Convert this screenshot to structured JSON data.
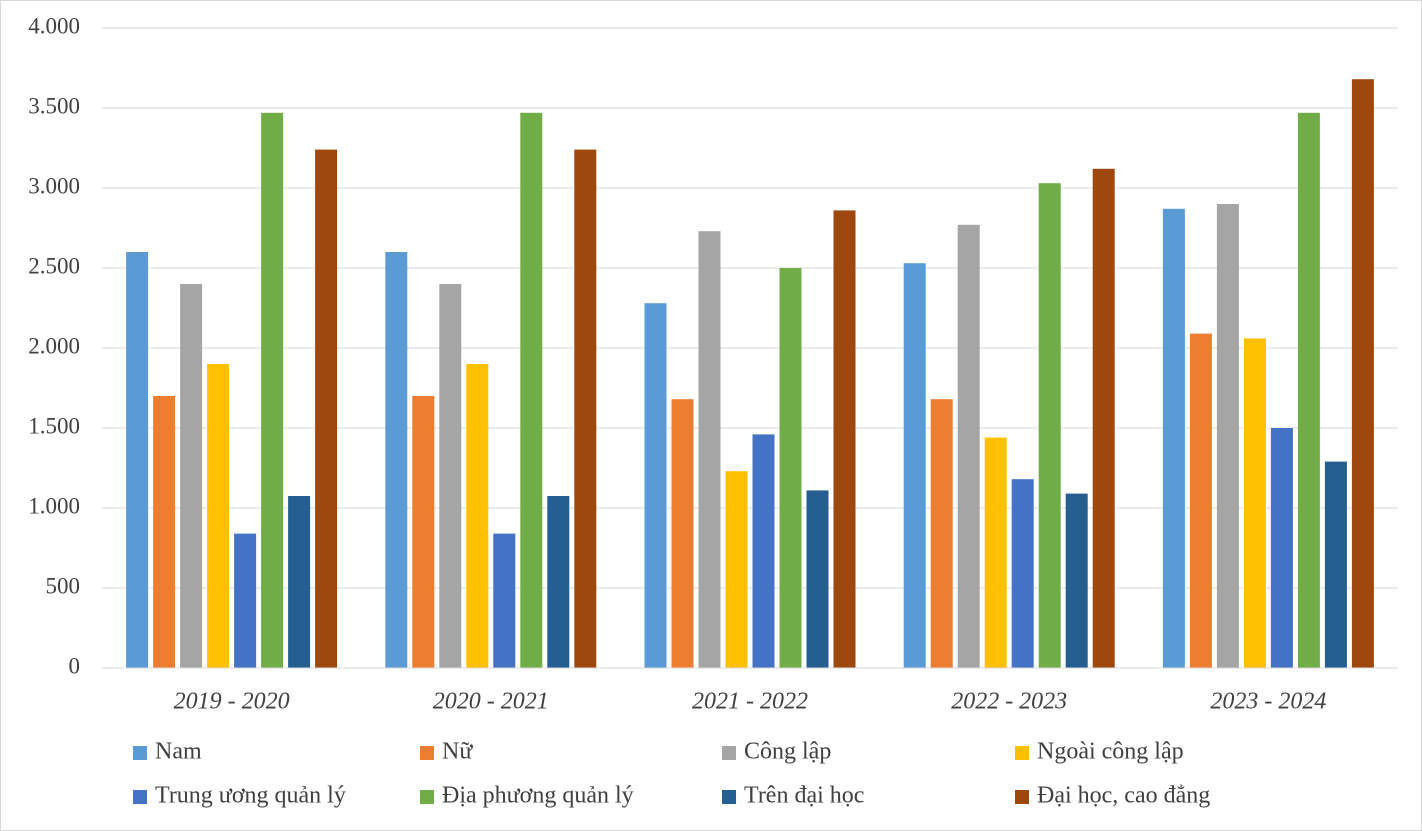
{
  "chart_data": {
    "type": "bar",
    "categories": [
      "2019 - 2020",
      "2020 - 2021",
      "2021 - 2022",
      "2022 - 2023",
      "2023 - 2024"
    ],
    "series": [
      {
        "name": "Nam",
        "color": "#5b9bd5",
        "values": [
          2600,
          2600,
          2280,
          2530,
          2870
        ]
      },
      {
        "name": "Nữ",
        "color": "#ed7d31",
        "values": [
          1700,
          1700,
          1680,
          1680,
          2090
        ]
      },
      {
        "name": "Công lập",
        "color": "#a5a5a5",
        "values": [
          2400,
          2400,
          2730,
          2770,
          2900
        ]
      },
      {
        "name": "Ngoài công lập",
        "color": "#ffc000",
        "values": [
          1900,
          1900,
          1230,
          1440,
          2060
        ]
      },
      {
        "name": "Trung ương quản lý",
        "color": "#4472c4",
        "values": [
          840,
          840,
          1460,
          1180,
          1500
        ]
      },
      {
        "name": "Địa phương quản lý",
        "color": "#70ad47",
        "values": [
          3470,
          3470,
          2500,
          3030,
          3470
        ]
      },
      {
        "name": "Trên đại học",
        "color": "#255e91",
        "values": [
          1075,
          1075,
          1110,
          1090,
          1290
        ]
      },
      {
        "name": "Đại học, cao đẳng",
        "color": "#9e480e",
        "values": [
          3240,
          3240,
          2860,
          3120,
          3680
        ]
      }
    ],
    "ylim": [
      0,
      4000
    ],
    "yticks": [
      0,
      500,
      {
        "value": 1000,
        "label": "1.000"
      },
      {
        "value": 1500,
        "label": "1.500"
      },
      {
        "value": 2000,
        "label": "2.000"
      },
      {
        "value": 2500,
        "label": "2.500"
      },
      {
        "value": 3000,
        "label": "3.000"
      },
      {
        "value": 3500,
        "label": "3.500"
      },
      {
        "value": 4000,
        "label": "4.000"
      }
    ],
    "grid": true,
    "legend": "bottom"
  }
}
